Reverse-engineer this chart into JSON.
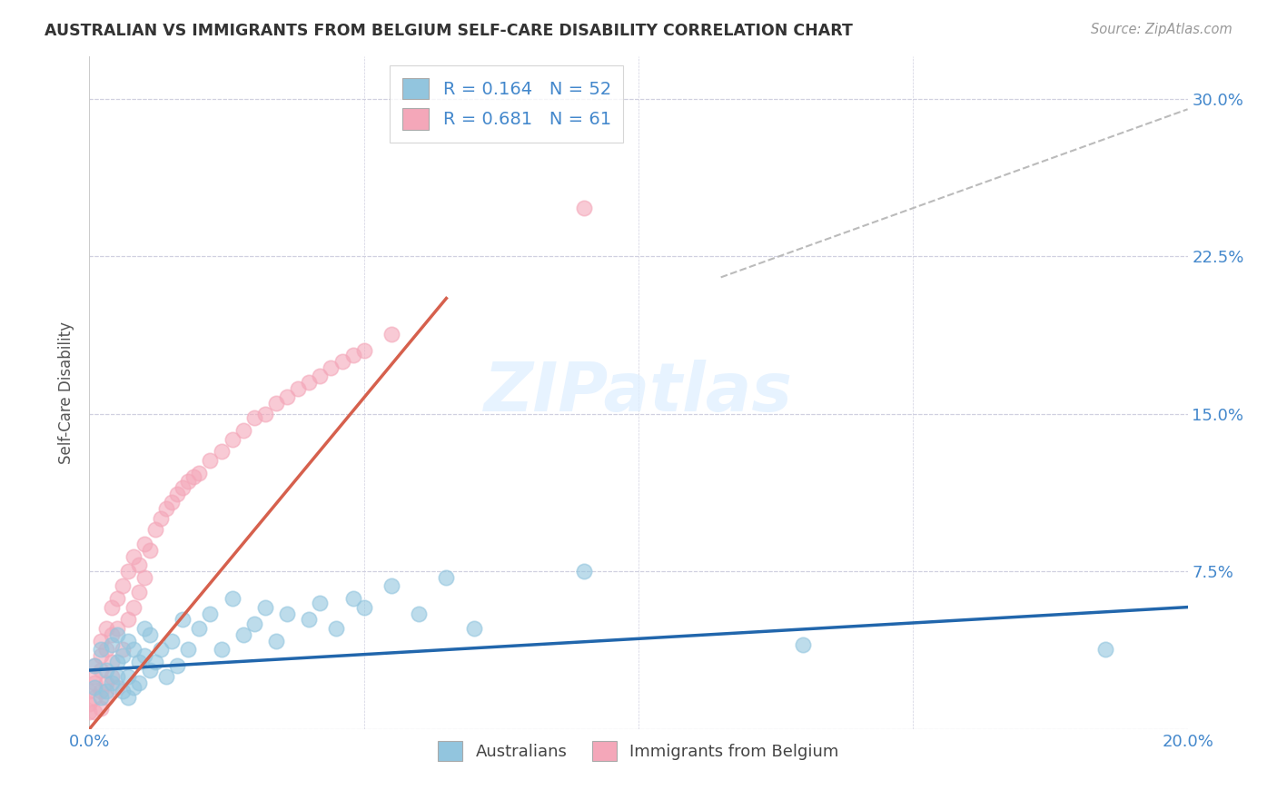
{
  "title": "AUSTRALIAN VS IMMIGRANTS FROM BELGIUM SELF-CARE DISABILITY CORRELATION CHART",
  "source": "Source: ZipAtlas.com",
  "ylabel": "Self-Care Disability",
  "xlim": [
    0.0,
    0.2
  ],
  "ylim": [
    0.0,
    0.32
  ],
  "blue_color": "#92c5de",
  "pink_color": "#f4a7b9",
  "blue_line_color": "#2166ac",
  "pink_line_color": "#d6604d",
  "dashed_line_color": "#bbbbbb",
  "watermark": "ZIPatlas",
  "background_color": "#ffffff",
  "grid_color": "#d0d0e0",
  "aus_x": [
    0.001,
    0.001,
    0.002,
    0.002,
    0.003,
    0.003,
    0.004,
    0.004,
    0.005,
    0.005,
    0.005,
    0.006,
    0.006,
    0.007,
    0.007,
    0.007,
    0.008,
    0.008,
    0.009,
    0.009,
    0.01,
    0.01,
    0.011,
    0.011,
    0.012,
    0.013,
    0.014,
    0.015,
    0.016,
    0.017,
    0.018,
    0.02,
    0.022,
    0.024,
    0.026,
    0.028,
    0.03,
    0.032,
    0.034,
    0.036,
    0.04,
    0.042,
    0.045,
    0.048,
    0.05,
    0.055,
    0.06,
    0.065,
    0.07,
    0.09,
    0.13,
    0.185
  ],
  "aus_y": [
    0.03,
    0.02,
    0.015,
    0.038,
    0.018,
    0.028,
    0.022,
    0.04,
    0.032,
    0.025,
    0.045,
    0.018,
    0.035,
    0.025,
    0.042,
    0.015,
    0.02,
    0.038,
    0.022,
    0.032,
    0.035,
    0.048,
    0.028,
    0.045,
    0.032,
    0.038,
    0.025,
    0.042,
    0.03,
    0.052,
    0.038,
    0.048,
    0.055,
    0.038,
    0.062,
    0.045,
    0.05,
    0.058,
    0.042,
    0.055,
    0.052,
    0.06,
    0.048,
    0.062,
    0.058,
    0.068,
    0.055,
    0.072,
    0.048,
    0.075,
    0.04,
    0.038
  ],
  "bel_x": [
    0.0,
    0.0,
    0.0,
    0.001,
    0.001,
    0.001,
    0.001,
    0.001,
    0.002,
    0.002,
    0.002,
    0.002,
    0.002,
    0.003,
    0.003,
    0.003,
    0.003,
    0.004,
    0.004,
    0.004,
    0.004,
    0.005,
    0.005,
    0.005,
    0.006,
    0.006,
    0.007,
    0.007,
    0.008,
    0.008,
    0.009,
    0.009,
    0.01,
    0.01,
    0.011,
    0.012,
    0.013,
    0.014,
    0.015,
    0.016,
    0.017,
    0.018,
    0.019,
    0.02,
    0.022,
    0.024,
    0.026,
    0.028,
    0.03,
    0.032,
    0.034,
    0.036,
    0.038,
    0.04,
    0.042,
    0.044,
    0.046,
    0.048,
    0.05,
    0.055,
    0.09
  ],
  "bel_y": [
    0.008,
    0.018,
    0.012,
    0.022,
    0.015,
    0.03,
    0.008,
    0.025,
    0.035,
    0.018,
    0.042,
    0.01,
    0.028,
    0.038,
    0.022,
    0.048,
    0.015,
    0.045,
    0.025,
    0.058,
    0.032,
    0.062,
    0.02,
    0.048,
    0.038,
    0.068,
    0.052,
    0.075,
    0.058,
    0.082,
    0.065,
    0.078,
    0.072,
    0.088,
    0.085,
    0.095,
    0.1,
    0.105,
    0.108,
    0.112,
    0.115,
    0.118,
    0.12,
    0.122,
    0.128,
    0.132,
    0.138,
    0.142,
    0.148,
    0.15,
    0.155,
    0.158,
    0.162,
    0.165,
    0.168,
    0.172,
    0.175,
    0.178,
    0.18,
    0.188,
    0.248
  ],
  "aus_line_x": [
    0.0,
    0.2
  ],
  "aus_line_y": [
    0.028,
    0.058
  ],
  "bel_line_x": [
    0.0,
    0.065
  ],
  "bel_line_y": [
    0.0,
    0.205
  ],
  "dash_line_x": [
    0.115,
    0.2
  ],
  "dash_line_y": [
    0.215,
    0.295
  ]
}
